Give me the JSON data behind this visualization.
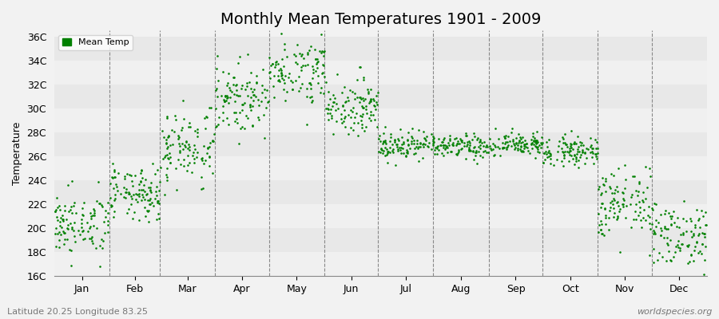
{
  "title": "Monthly Mean Temperatures 1901 - 2009",
  "ylabel": "Temperature",
  "xlabel_labels": [
    "Jan",
    "Feb",
    "Mar",
    "Apr",
    "May",
    "Jun",
    "Jul",
    "Aug",
    "Sep",
    "Oct",
    "Nov",
    "Dec"
  ],
  "ytick_labels": [
    "16C",
    "18C",
    "20C",
    "22C",
    "24C",
    "26C",
    "28C",
    "30C",
    "32C",
    "34C",
    "36C"
  ],
  "ytick_values": [
    16,
    18,
    20,
    22,
    24,
    26,
    28,
    30,
    32,
    34,
    36
  ],
  "ylim": [
    16,
    36.5
  ],
  "dot_color": "#008000",
  "dot_size": 3.5,
  "background_color": "#f2f2f2",
  "plot_bg_color": "#f2f2f2",
  "grid_color": "#aaaaaa",
  "title_fontsize": 14,
  "axis_fontsize": 9,
  "footer_left": "Latitude 20.25 Longitude 83.25",
  "footer_right": "worldspecies.org",
  "monthly_means": [
    20.3,
    22.8,
    26.8,
    30.8,
    33.2,
    30.2,
    27.0,
    26.8,
    27.0,
    26.5,
    22.0,
    19.5
  ],
  "monthly_stds": [
    1.3,
    1.1,
    1.6,
    1.4,
    1.3,
    1.1,
    0.6,
    0.5,
    0.5,
    0.6,
    1.5,
    1.4
  ],
  "n_years": 109,
  "month_days": [
    31,
    28,
    31,
    30,
    31,
    30,
    31,
    31,
    30,
    31,
    30,
    31
  ],
  "stripe_colors": [
    "#f0f0f0",
    "#e8e8e8"
  ]
}
